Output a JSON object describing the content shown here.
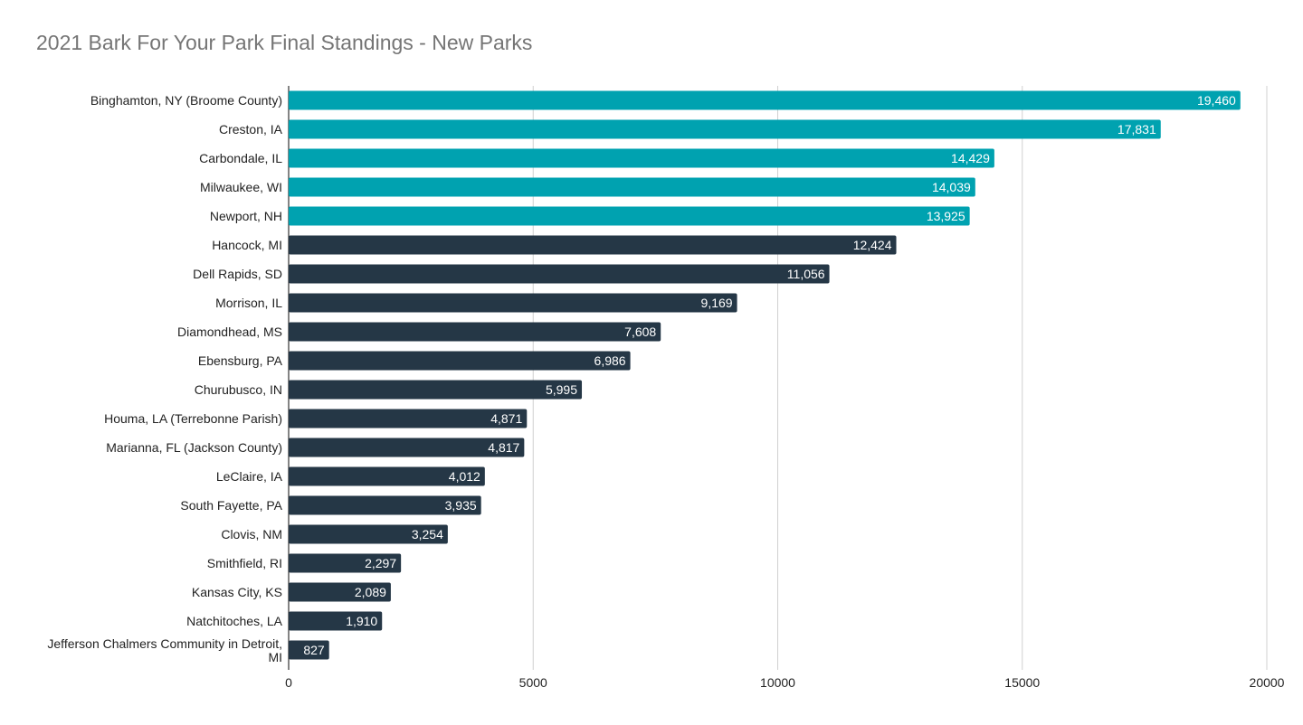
{
  "chart_data": {
    "type": "bar",
    "orientation": "horizontal",
    "title": "2021 Bark For Your Park Final Standings - New Parks",
    "xlabel": "",
    "ylabel": "",
    "xlim": [
      0,
      20000
    ],
    "ticks": [
      0,
      5000,
      10000,
      15000,
      20000
    ],
    "grid": true,
    "legend": "none",
    "colors": {
      "top": "#00a2b0",
      "rest": "#253746",
      "grid": "#d0d0d0",
      "axis": "#333333"
    },
    "categories": [
      "Binghamton, NY (Broome County)",
      "Creston, IA",
      "Carbondale, IL",
      "Milwaukee, WI",
      "Newport, NH",
      "Hancock, MI",
      "Dell Rapids, SD",
      "Morrison, IL",
      "Diamondhead, MS",
      "Ebensburg, PA",
      "Churubusco, IN",
      "Houma, LA (Terrebonne Parish)",
      "Marianna, FL (Jackson County)",
      "LeClaire, IA",
      "South Fayette, PA",
      "Clovis, NM",
      "Smithfield, RI",
      "Kansas City, KS",
      "Natchitoches, LA",
      "Jefferson Chalmers Community in Detroit, MI"
    ],
    "values": [
      19460,
      17831,
      14429,
      14039,
      13925,
      12424,
      11056,
      9169,
      7608,
      6986,
      5995,
      4871,
      4817,
      4012,
      3935,
      3254,
      2297,
      2089,
      1910,
      827
    ],
    "value_labels": [
      "19,460",
      "17,831",
      "14,429",
      "14,039",
      "13,925",
      "12,424",
      "11,056",
      "9,169",
      "7,608",
      "6,986",
      "5,995",
      "4,871",
      "4,817",
      "4,012",
      "3,935",
      "3,254",
      "2,297",
      "2,089",
      "1,910",
      "827"
    ],
    "highlight_top_n": 5
  }
}
